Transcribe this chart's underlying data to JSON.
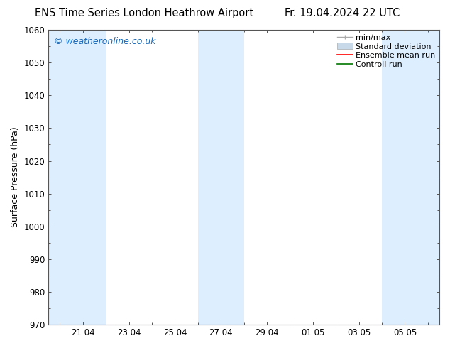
{
  "title_left": "ENS Time Series London Heathrow Airport",
  "title_right": "Fr. 19.04.2024 22 UTC",
  "ylabel": "Surface Pressure (hPa)",
  "ylim": [
    970,
    1060
  ],
  "yticks": [
    970,
    980,
    990,
    1000,
    1010,
    1020,
    1030,
    1040,
    1050,
    1060
  ],
  "xtick_labels": [
    "21.04",
    "23.04",
    "25.04",
    "27.04",
    "29.04",
    "01.05",
    "03.05",
    "05.05"
  ],
  "xtick_positions": [
    2,
    4,
    6,
    8,
    10,
    12,
    14,
    16
  ],
  "xlim": [
    0.5,
    17.5
  ],
  "watermark": "© weatheronline.co.uk",
  "watermark_color": "#1a6abb",
  "bg_color": "#ffffff",
  "shaded_bands": [
    {
      "x_start": 0.5,
      "x_end": 3,
      "color": "#ddeeff"
    },
    {
      "x_start": 7,
      "x_end": 9,
      "color": "#ddeeff"
    },
    {
      "x_start": 15,
      "x_end": 17.5,
      "color": "#ddeeff"
    }
  ],
  "font_size_title": 10.5,
  "font_size_axis": 9,
  "font_size_watermark": 9,
  "font_size_legend": 8,
  "tick_label_size": 8.5,
  "grid_color": "#dddddd",
  "axis_color": "#555555",
  "legend_min_max_color": "#aaaaaa",
  "legend_std_color": "#c8daea",
  "legend_ens_color": "#ff0000",
  "legend_ctrl_color": "#007700"
}
